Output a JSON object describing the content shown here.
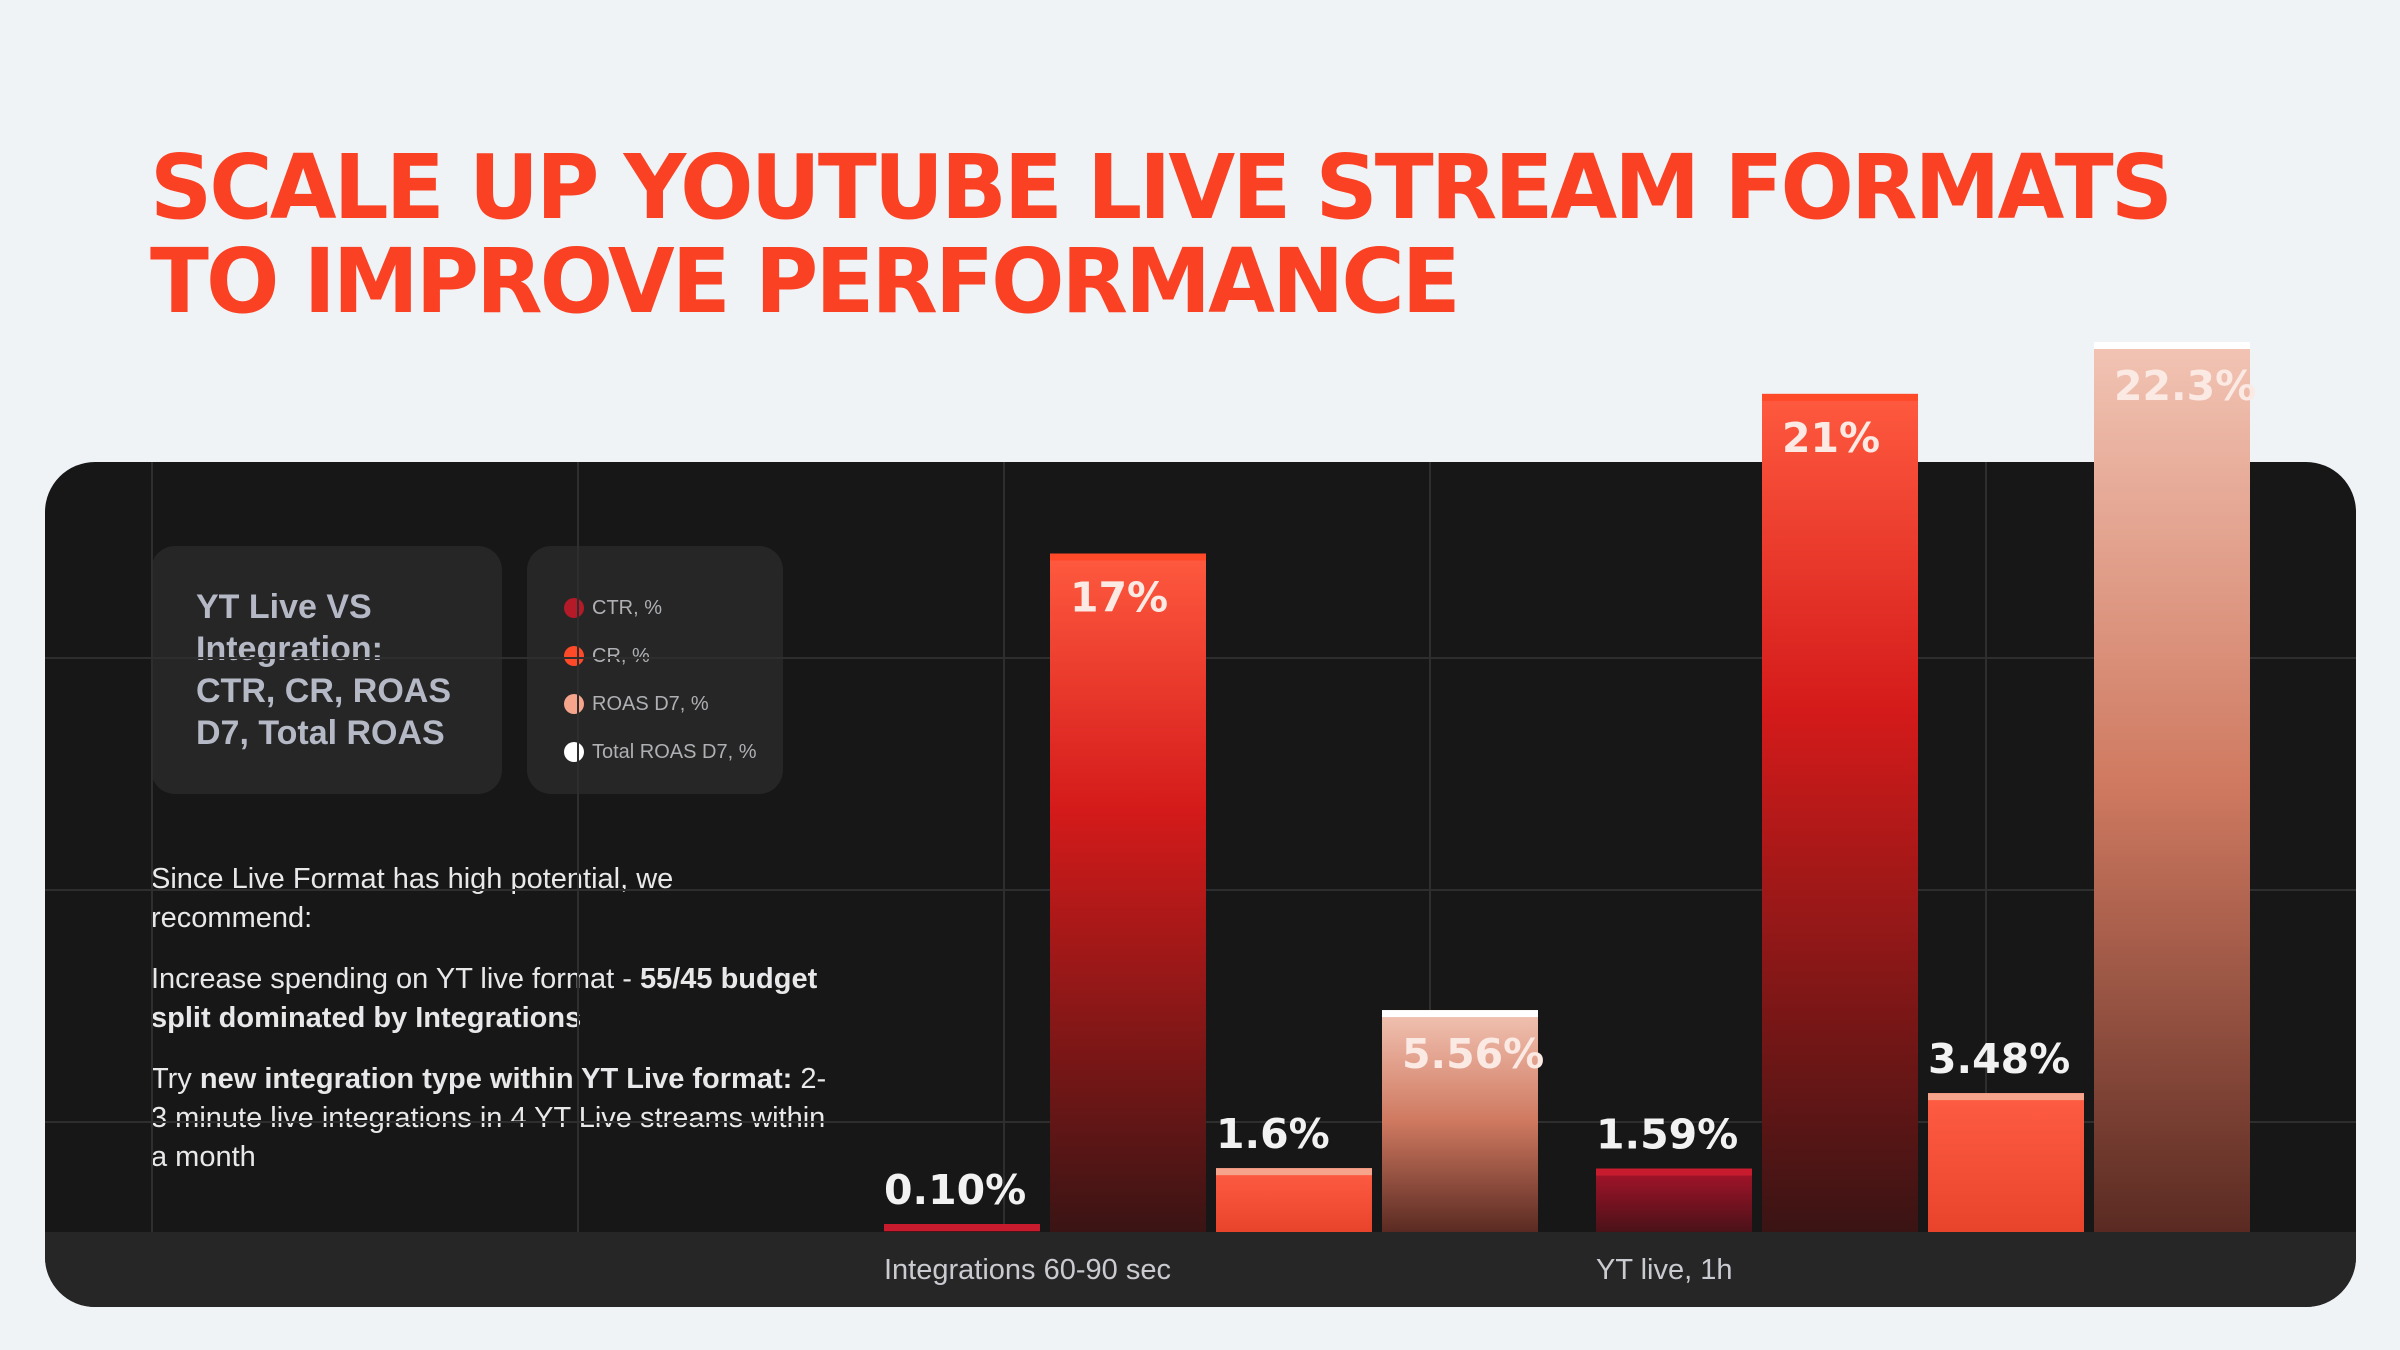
{
  "title": {
    "line1": "SCALE UP YOUTUBE LIVE STREAM FORMATS",
    "line2": "TO IMPROVE PERFORMANCE"
  },
  "legend": {
    "title": "YT Live VS Integration: CTR, CR, ROAS D7, Total ROAS",
    "items": [
      {
        "label": "CTR, %",
        "color": "#b51a29"
      },
      {
        "label": "CR, %",
        "color": "#ff4a2a"
      },
      {
        "label": "ROAS D7, %",
        "color": "#f6a48c"
      },
      {
        "label": "Total ROAS D7, %",
        "color": "#ffffff"
      }
    ]
  },
  "notes": {
    "p1": "Since Live Format has high potential, we recommend:",
    "p2_lead": "Increase spending on YT live format - ",
    "p2_bold": "55/45 budget split dominated by Integrations",
    "p3_lead": "Try ",
    "p3_bold": "new integration type within YT Live format:",
    "p3_tail": " 2-3 minute live integrations in 4 YT Live streams within a month"
  },
  "chart_data": {
    "type": "bar",
    "categories": [
      "Integrations 60-90 sec",
      "YT live, 1h"
    ],
    "series": [
      {
        "name": "CTR, %",
        "values": [
          0.1,
          1.59
        ],
        "labels": [
          "0.10%",
          "1.59%"
        ]
      },
      {
        "name": "CR, %",
        "values": [
          17,
          21
        ],
        "labels": [
          "17%",
          "21%"
        ]
      },
      {
        "name": "ROAS D7, %",
        "values": [
          1.6,
          3.48
        ],
        "labels": [
          "1.6%",
          "3.48%"
        ]
      },
      {
        "name": "Total ROAS D7, %",
        "values": [
          5.56,
          22.3
        ],
        "labels": [
          "5.56%",
          "22.3%"
        ]
      }
    ],
    "grid": true,
    "legend_position": "top-left"
  }
}
